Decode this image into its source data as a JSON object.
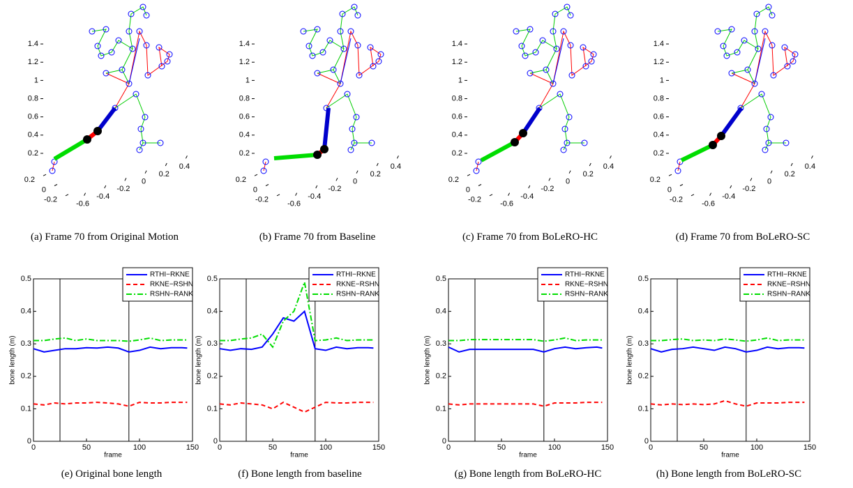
{
  "chart_data": [
    {
      "type": "skeleton3d",
      "caption": "(a) Frame 70 from Original Motion",
      "zlim": [
        0.1,
        1.5
      ],
      "zticks": [
        0.2,
        0.4,
        0.6,
        0.8,
        1,
        1.2,
        1.4
      ],
      "ylim": [
        -0.3,
        0.3
      ],
      "yticks": [
        0.2,
        0,
        -0.2
      ],
      "xlim": [
        -0.7,
        0.5
      ],
      "xticks": [
        -0.6,
        -0.4,
        -0.2,
        0,
        0.2,
        0.4
      ]
    },
    {
      "type": "skeleton3d",
      "caption": "(b) Frame 70 from Baseline",
      "zlim": [
        0.1,
        1.5
      ],
      "zticks": [
        0.2,
        0.4,
        0.6,
        0.8,
        1,
        1.2,
        1.4
      ],
      "ylim": [
        -0.3,
        0.3
      ],
      "yticks": [
        0.2,
        0,
        -0.2
      ],
      "xlim": [
        -0.7,
        0.5
      ],
      "xticks": [
        -0.6,
        -0.4,
        -0.2,
        0,
        0.2,
        0.4
      ]
    },
    {
      "type": "skeleton3d",
      "caption": "(c) Frame 70 from BoLeRO-HC",
      "zlim": [
        0.1,
        1.5
      ],
      "zticks": [
        0.2,
        0.4,
        0.6,
        0.8,
        1,
        1.2,
        1.4
      ],
      "ylim": [
        -0.3,
        0.3
      ],
      "yticks": [
        0.2,
        0,
        -0.2
      ],
      "xlim": [
        -0.7,
        0.5
      ],
      "xticks": [
        -0.6,
        -0.4,
        -0.2,
        0,
        0.2,
        0.4
      ]
    },
    {
      "type": "skeleton3d",
      "caption": "(d) Frame 70 from BoLeRO-SC",
      "zlim": [
        0.1,
        1.5
      ],
      "zticks": [
        0.2,
        0.4,
        0.6,
        0.8,
        1,
        1.2,
        1.4
      ],
      "ylim": [
        -0.3,
        0.3
      ],
      "yticks": [
        0.2,
        0,
        -0.2
      ],
      "xlim": [
        -0.7,
        0.5
      ],
      "xticks": [
        -0.6,
        -0.4,
        -0.2,
        0,
        0.2,
        0.4
      ]
    },
    {
      "type": "line",
      "caption": "(e) Original bone length",
      "xlabel": "frame",
      "ylabel": "bone length (m)",
      "xlim": [
        0,
        150
      ],
      "xticks": [
        0,
        50,
        100,
        150
      ],
      "ylim": [
        0,
        0.5
      ],
      "yticks": [
        0,
        0.1,
        0.2,
        0.3,
        0.4,
        0.5
      ],
      "vlines": [
        25,
        90
      ],
      "legend": "upper right",
      "x": [
        0,
        10,
        20,
        30,
        40,
        50,
        60,
        70,
        80,
        90,
        100,
        110,
        120,
        130,
        140,
        145
      ],
      "series": [
        {
          "name": "RTHI−RKNE",
          "color": "#0000ff",
          "values": [
            0.285,
            0.275,
            0.28,
            0.285,
            0.285,
            0.288,
            0.287,
            0.29,
            0.287,
            0.275,
            0.28,
            0.29,
            0.285,
            0.288,
            0.288,
            0.287
          ]
        },
        {
          "name": "RKNE−RSHN",
          "color": "#ff0000",
          "values": [
            0.115,
            0.112,
            0.118,
            0.115,
            0.118,
            0.118,
            0.12,
            0.118,
            0.115,
            0.108,
            0.12,
            0.118,
            0.118,
            0.12,
            0.12,
            0.12
          ]
        },
        {
          "name": "RSHN−RANK",
          "color": "#00dd00",
          "values": [
            0.31,
            0.31,
            0.315,
            0.318,
            0.31,
            0.315,
            0.31,
            0.31,
            0.31,
            0.308,
            0.312,
            0.318,
            0.31,
            0.312,
            0.312,
            0.312
          ]
        }
      ]
    },
    {
      "type": "line",
      "caption": "(f) Bone length from baseline",
      "xlabel": "frame",
      "ylabel": "bone length (m)",
      "xlim": [
        0,
        150
      ],
      "xticks": [
        0,
        50,
        100,
        150
      ],
      "ylim": [
        0,
        0.5
      ],
      "yticks": [
        0,
        0.1,
        0.2,
        0.3,
        0.4,
        0.5
      ],
      "vlines": [
        25,
        90
      ],
      "legend": "upper right",
      "x": [
        0,
        10,
        20,
        30,
        40,
        50,
        60,
        70,
        80,
        90,
        100,
        110,
        120,
        130,
        140,
        145
      ],
      "series": [
        {
          "name": "RTHI−RKNE",
          "color": "#0000ff",
          "values": [
            0.285,
            0.28,
            0.285,
            0.283,
            0.29,
            0.33,
            0.38,
            0.37,
            0.4,
            0.285,
            0.28,
            0.29,
            0.285,
            0.288,
            0.288,
            0.287
          ]
        },
        {
          "name": "RKNE−RSHN",
          "color": "#ff0000",
          "values": [
            0.115,
            0.112,
            0.118,
            0.115,
            0.112,
            0.1,
            0.12,
            0.105,
            0.09,
            0.105,
            0.12,
            0.118,
            0.118,
            0.12,
            0.12,
            0.12
          ]
        },
        {
          "name": "RSHN−RANK",
          "color": "#00dd00",
          "values": [
            0.31,
            0.31,
            0.315,
            0.318,
            0.33,
            0.29,
            0.37,
            0.4,
            0.49,
            0.31,
            0.312,
            0.318,
            0.31,
            0.312,
            0.312,
            0.312
          ]
        }
      ]
    },
    {
      "type": "line",
      "caption": "(g) Bone length from BoLeRO-HC",
      "xlabel": "frame",
      "ylabel": "bone length (m)",
      "xlim": [
        0,
        150
      ],
      "xticks": [
        0,
        50,
        100,
        150
      ],
      "ylim": [
        0,
        0.5
      ],
      "yticks": [
        0,
        0.1,
        0.2,
        0.3,
        0.4,
        0.5
      ],
      "vlines": [
        25,
        90
      ],
      "legend": "upper right",
      "x": [
        0,
        10,
        20,
        30,
        40,
        50,
        60,
        70,
        80,
        90,
        100,
        110,
        120,
        130,
        140,
        145
      ],
      "series": [
        {
          "name": "RTHI−RKNE",
          "color": "#0000ff",
          "values": [
            0.29,
            0.275,
            0.283,
            0.283,
            0.283,
            0.283,
            0.283,
            0.283,
            0.283,
            0.275,
            0.285,
            0.29,
            0.285,
            0.288,
            0.29,
            0.287
          ]
        },
        {
          "name": "RKNE−RSHN",
          "color": "#ff0000",
          "values": [
            0.115,
            0.112,
            0.115,
            0.115,
            0.115,
            0.115,
            0.115,
            0.115,
            0.115,
            0.108,
            0.118,
            0.118,
            0.118,
            0.12,
            0.12,
            0.12
          ]
        },
        {
          "name": "RSHN−RANK",
          "color": "#00dd00",
          "values": [
            0.31,
            0.31,
            0.313,
            0.313,
            0.313,
            0.313,
            0.313,
            0.313,
            0.313,
            0.308,
            0.312,
            0.318,
            0.31,
            0.312,
            0.312,
            0.312
          ]
        }
      ]
    },
    {
      "type": "line",
      "caption": "(h) Bone length from BoLeRO-SC",
      "xlabel": "frame",
      "ylabel": "bone length (m)",
      "xlim": [
        0,
        150
      ],
      "xticks": [
        0,
        50,
        100,
        150
      ],
      "ylim": [
        0,
        0.5
      ],
      "yticks": [
        0,
        0.1,
        0.2,
        0.3,
        0.4,
        0.5
      ],
      "vlines": [
        25,
        90
      ],
      "legend": "upper right",
      "x": [
        0,
        10,
        20,
        30,
        40,
        50,
        60,
        70,
        80,
        90,
        100,
        110,
        120,
        130,
        140,
        145
      ],
      "series": [
        {
          "name": "RTHI−RKNE",
          "color": "#0000ff",
          "values": [
            0.285,
            0.275,
            0.283,
            0.285,
            0.29,
            0.285,
            0.28,
            0.29,
            0.285,
            0.275,
            0.28,
            0.29,
            0.285,
            0.288,
            0.288,
            0.287
          ]
        },
        {
          "name": "RKNE−RSHN",
          "color": "#ff0000",
          "values": [
            0.115,
            0.112,
            0.115,
            0.113,
            0.115,
            0.113,
            0.115,
            0.125,
            0.115,
            0.108,
            0.118,
            0.118,
            0.118,
            0.12,
            0.12,
            0.12
          ]
        },
        {
          "name": "RSHN−RANK",
          "color": "#00dd00",
          "values": [
            0.31,
            0.31,
            0.313,
            0.315,
            0.31,
            0.312,
            0.31,
            0.315,
            0.312,
            0.308,
            0.312,
            0.318,
            0.31,
            0.312,
            0.312,
            0.312
          ]
        }
      ]
    }
  ]
}
